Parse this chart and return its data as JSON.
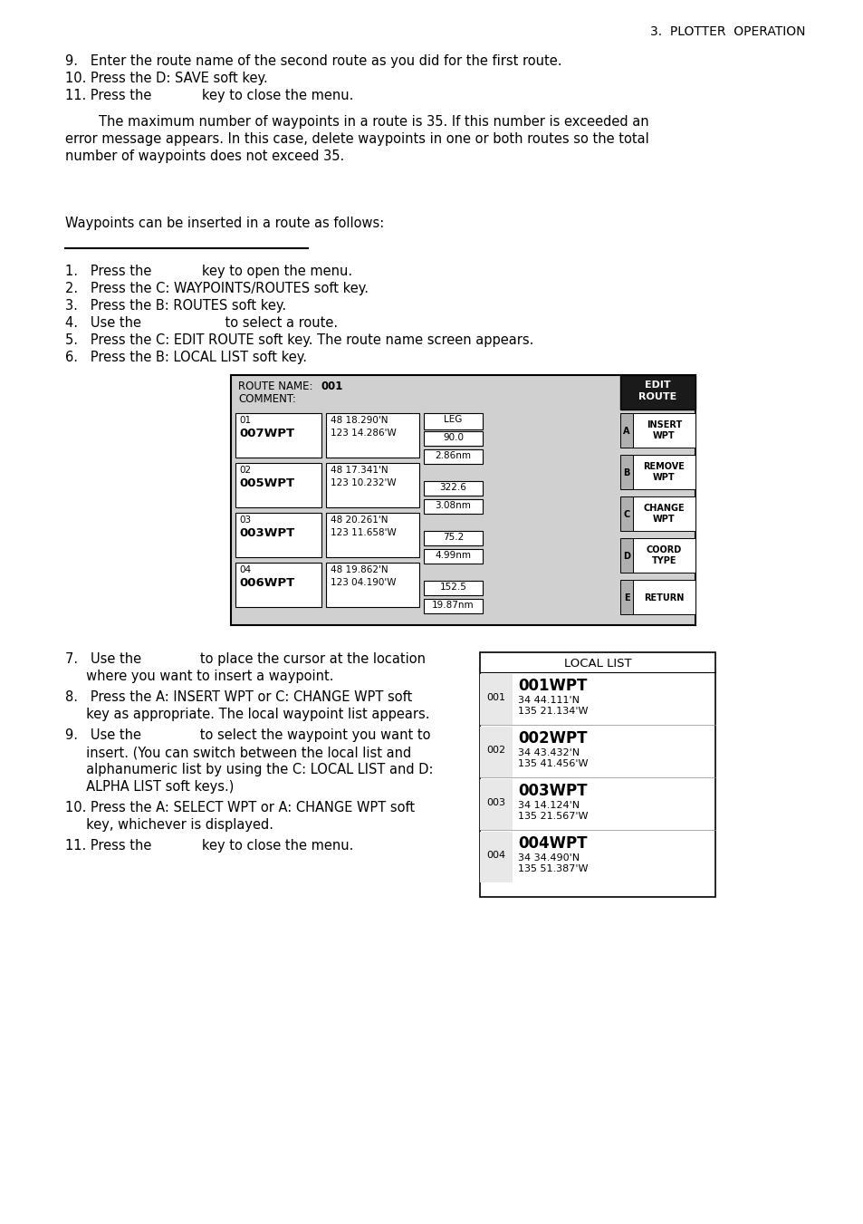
{
  "page_header": "3.  PLOTTER  OPERATION",
  "bg_color": "#ffffff",
  "section_intro": [
    "9.   Enter the route name of the second route as you did for the first route.",
    "10. Press the D: SAVE soft key.",
    "11. Press the            key to close the menu."
  ],
  "paragraph_lines": [
    "        The maximum number of waypoints in a route is 35. If this number is exceeded an",
    "error message appears. In this case, delete waypoints in one or both routes so the total",
    "number of waypoints does not exceed 35."
  ],
  "insert_intro": "Waypoints can be inserted in a route as follows:",
  "steps": [
    "1.   Press the            key to open the menu.",
    "2.   Press the C: WAYPOINTS/ROUTES soft key.",
    "3.   Press the B: ROUTES soft key.",
    "4.   Use the                    to select a route.",
    "5.   Press the C: EDIT ROUTE soft key. The route name screen appears.",
    "6.   Press the B: LOCAL LIST soft key."
  ],
  "steps2": [
    [
      "7.   Use the              to place the cursor at the location",
      "     where you want to insert a waypoint."
    ],
    [
      "8.   Press the A: INSERT WPT or C: CHANGE WPT soft",
      "     key as appropriate. The local waypoint list appears."
    ],
    [
      "9.   Use the              to select the waypoint you want to",
      "     insert. (You can switch between the local list and",
      "     alphanumeric list by using the C: LOCAL LIST and D:",
      "     ALPHA LIST soft keys.)"
    ],
    [
      "10. Press the A: SELECT WPT or A: CHANGE WPT soft",
      "     key, whichever is displayed."
    ],
    [
      "11. Press the            key to close the menu."
    ]
  ],
  "route_table": {
    "title_normal": "ROUTE NAME: ",
    "title_bold": "001",
    "comment": "COMMENT:",
    "rows": [
      {
        "num": "01",
        "wpt": "007WPT",
        "lat": "48 18.290'N",
        "lon": "123 14.286'W",
        "leg": "LEG",
        "angle": "90.0",
        "dist": "2.86nm"
      },
      {
        "num": "02",
        "wpt": "005WPT",
        "lat": "48 17.341'N",
        "lon": "123 10.232'W",
        "leg": "",
        "angle": "322.6",
        "dist": "3.08nm"
      },
      {
        "num": "03",
        "wpt": "003WPT",
        "lat": "48 20.261'N",
        "lon": "123 11.658'W",
        "leg": "",
        "angle": "75.2",
        "dist": "4.99nm"
      },
      {
        "num": "04",
        "wpt": "006WPT",
        "lat": "48 19.862'N",
        "lon": "123 04.190'W",
        "leg": "",
        "angle": "152.5",
        "dist": "19.87nm"
      }
    ],
    "buttons": [
      {
        "label": "A",
        "text": "INSERT\nWPT"
      },
      {
        "label": "B",
        "text": "REMOVE\nWPT"
      },
      {
        "label": "C",
        "text": "CHANGE\nWPT"
      },
      {
        "label": "D",
        "text": "COORD\nTYPE"
      },
      {
        "label": "E",
        "text": "RETURN"
      }
    ]
  },
  "local_list": {
    "title": "LOCAL LIST",
    "entries": [
      {
        "num": "001",
        "wpt": "001WPT",
        "lat": "34 44.111'N",
        "lon": "135 21.134'W"
      },
      {
        "num": "002",
        "wpt": "002WPT",
        "lat": "34 43.432'N",
        "lon": "135 41.456'W"
      },
      {
        "num": "003",
        "wpt": "003WPT",
        "lat": "34 14.124'N",
        "lon": "135 21.567'W"
      },
      {
        "num": "004",
        "wpt": "004WPT",
        "lat": "34 34.490'N",
        "lon": "135 51.387'W"
      }
    ]
  }
}
